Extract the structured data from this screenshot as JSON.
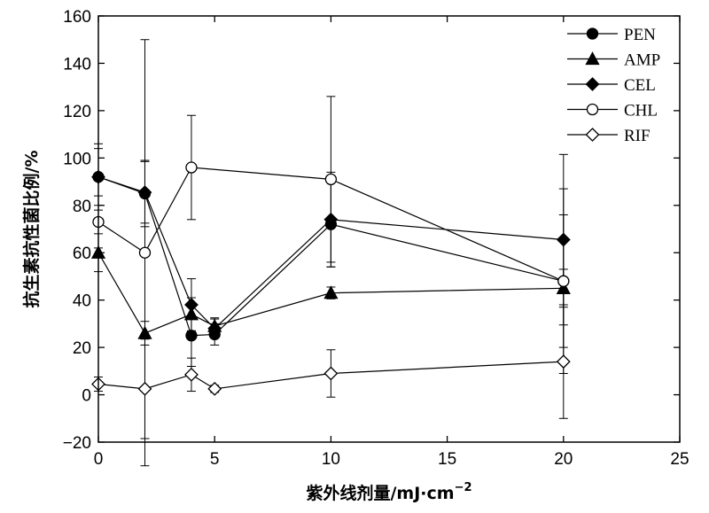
{
  "chart_data": {
    "type": "scatter",
    "xlabel": "紫外线剂量/mJ·cm",
    "xlabel_superscript": "−2",
    "ylabel": "抗生素抗性菌比例/%",
    "xlim": [
      0,
      25
    ],
    "ylim": [
      -20,
      160
    ],
    "xticks": [
      0,
      5,
      10,
      15,
      20,
      25
    ],
    "yticks": [
      -20,
      0,
      20,
      40,
      60,
      80,
      100,
      120,
      140,
      160
    ],
    "xtick_labels": [
      "0",
      "5",
      "10",
      "15",
      "20",
      "25"
    ],
    "ytick_labels": [
      "−20",
      "0",
      "20",
      "40",
      "60",
      "80",
      "100",
      "120",
      "140",
      "160"
    ],
    "grid": false,
    "legend_position": "top-right",
    "series": [
      {
        "name": "PEN",
        "marker": "circle-filled",
        "x": [
          0,
          2,
          4,
          5,
          10,
          20
        ],
        "y": [
          92,
          85,
          25,
          25.5,
          72,
          48
        ],
        "err": [
          14,
          14,
          13,
          4.5,
          18,
          28
        ]
      },
      {
        "name": "AMP",
        "marker": "triangle-filled",
        "x": [
          0,
          2,
          4,
          5,
          10,
          20
        ],
        "y": [
          60,
          26,
          34,
          29,
          43,
          45
        ],
        "err": [
          8,
          5,
          7,
          3.5,
          2.5,
          8
        ]
      },
      {
        "name": "CEL",
        "marker": "diamond-filled",
        "x": [
          0,
          2,
          4,
          5,
          10,
          20
        ],
        "y": [
          92,
          85.5,
          38,
          28,
          74,
          65.5
        ],
        "err": [
          12,
          13,
          11,
          4,
          20,
          36
        ]
      },
      {
        "name": "CHL",
        "marker": "circle-open",
        "x": [
          0,
          2,
          4,
          10,
          20
        ],
        "y": [
          73,
          60,
          96,
          91,
          48
        ],
        "err": [
          11,
          90,
          22,
          35,
          39
        ]
      },
      {
        "name": "RIF",
        "marker": "diamond-open",
        "x": [
          0,
          2,
          4,
          5,
          10,
          20
        ],
        "y": [
          4.5,
          2.5,
          8.5,
          2.5,
          9,
          14
        ],
        "err": [
          3,
          21,
          7,
          1.5,
          10,
          24
        ]
      }
    ]
  }
}
